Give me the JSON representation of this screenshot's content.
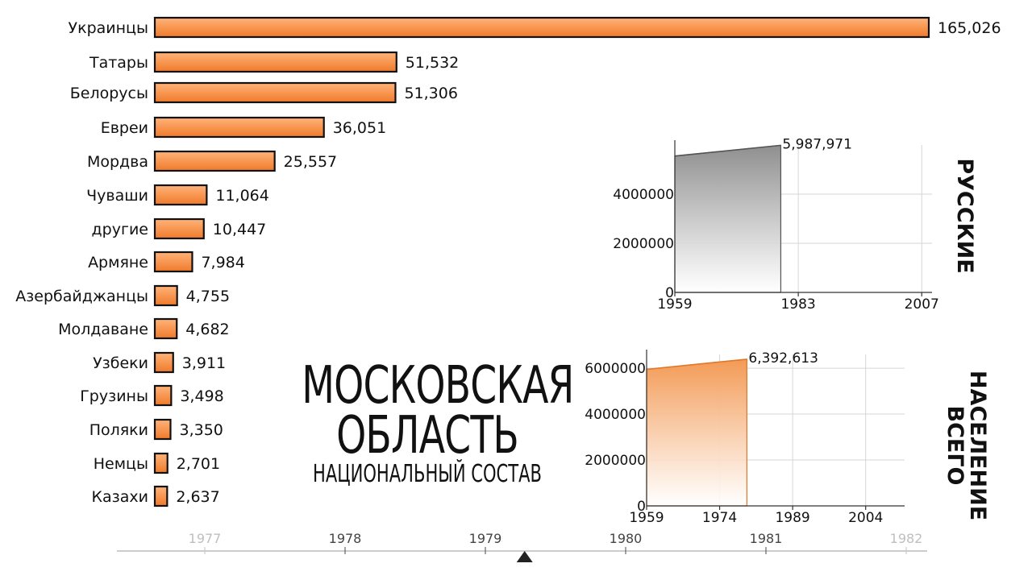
{
  "title": {
    "line1": "Московская",
    "line2": "область",
    "subtitle": "Национальный состав"
  },
  "colors": {
    "bar_top": "#ffb37a",
    "bar_bottom": "#f07a2a",
    "russian_area_top": "#8f8f8f",
    "total_area_top": "#f39a55",
    "total_line": "#e0782a"
  },
  "chart_data": [
    {
      "type": "bar",
      "orientation": "horizontal",
      "categories": [
        "Украинцы",
        "Татары",
        "Белорусы",
        "Евреи",
        "Мордва",
        "Чуваши",
        "другие",
        "Армяне",
        "Азербайджанцы",
        "Молдаване",
        "Узбеки",
        "Грузины",
        "Поляки",
        "Немцы",
        "Казахи"
      ],
      "values": [
        165026,
        51532,
        51306,
        36051,
        25557,
        11064,
        10447,
        7984,
        4755,
        4682,
        3911,
        3498,
        3350,
        2701,
        2637
      ],
      "value_labels": [
        "165,026",
        "51,532",
        "51,306",
        "36,051",
        "25,557",
        "11,064",
        "10,447",
        "7,984",
        "4,755",
        "4,682",
        "3,911",
        "3,498",
        "3,350",
        "2,701",
        "2,637"
      ]
    },
    {
      "type": "area",
      "side_title": "Русские",
      "x": [
        1959,
        1979.6
      ],
      "y": [
        5550000,
        5987971
      ],
      "peak_label": "5,987,971",
      "xlim": [
        1959,
        2009
      ],
      "ylim": [
        0,
        6000000
      ],
      "xticks": [
        "1959",
        "1983",
        "2007"
      ],
      "yticks": [
        "0",
        "2000000",
        "4000000"
      ],
      "grid": true
    },
    {
      "type": "area",
      "side_title_line1": "Население",
      "side_title_line2": "всего",
      "x": [
        1959,
        1979.6
      ],
      "y": [
        5950000,
        6392613
      ],
      "peak_label": "6,392,613",
      "xlim": [
        1959,
        2012
      ],
      "ylim": [
        0,
        6600000
      ],
      "xticks": [
        "1959",
        "1974",
        "1989",
        "2004"
      ],
      "yticks": [
        "0",
        "2000000",
        "4000000",
        "6000000"
      ],
      "grid": true
    }
  ],
  "timeline": {
    "years": [
      "1977",
      "1978",
      "1979",
      "1980",
      "1981",
      "1982"
    ],
    "current": 1979.28
  }
}
